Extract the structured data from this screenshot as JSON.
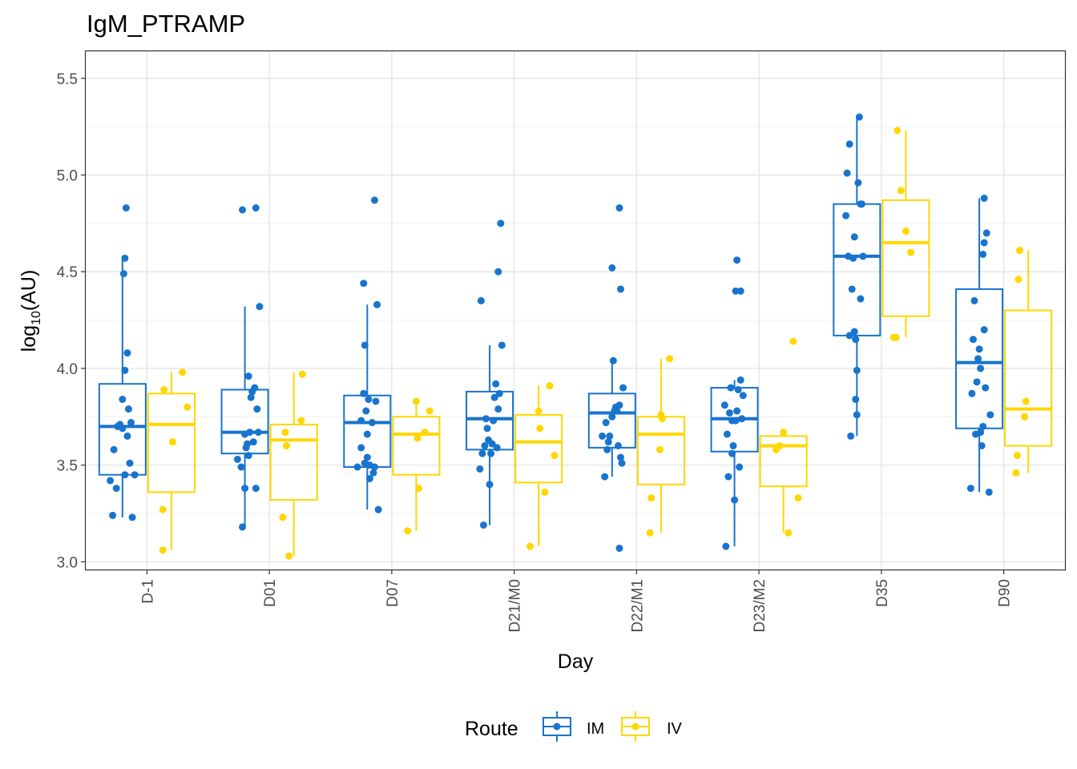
{
  "chart_data": {
    "type": "boxplot",
    "title": "IgM_PTRAMP",
    "xlabel": "Day",
    "ylabel": "log10(AU)",
    "ylabel_base": "log",
    "ylabel_sub": "10",
    "ylabel_rest": "(AU)",
    "ylim": [
      2.96,
      5.64
    ],
    "yticks": [
      "3.0",
      "3.5",
      "4.0",
      "4.5",
      "5.0",
      "5.5"
    ],
    "categories": [
      "D-1",
      "D01",
      "D07",
      "D21/M0",
      "D22/M1",
      "D23/M2",
      "D35",
      "D90"
    ],
    "grid": true,
    "legend": {
      "title": "Route",
      "position": "bottom"
    },
    "series": [
      {
        "name": "IM",
        "color": "#1874CD",
        "boxes": [
          {
            "q1": 3.45,
            "median": 3.7,
            "q3": 3.92,
            "whisker_low": 3.23,
            "whisker_high": 4.57
          },
          {
            "q1": 3.56,
            "median": 3.67,
            "q3": 3.89,
            "whisker_low": 3.18,
            "whisker_high": 4.32
          },
          {
            "q1": 3.49,
            "median": 3.72,
            "q3": 3.86,
            "whisker_low": 3.27,
            "whisker_high": 4.33
          },
          {
            "q1": 3.58,
            "median": 3.74,
            "q3": 3.88,
            "whisker_low": 3.19,
            "whisker_high": 4.12
          },
          {
            "q1": 3.59,
            "median": 3.77,
            "q3": 3.87,
            "whisker_low": 3.44,
            "whisker_high": 4.04
          },
          {
            "q1": 3.57,
            "median": 3.74,
            "q3": 3.9,
            "whisker_low": 3.08,
            "whisker_high": 3.94
          },
          {
            "q1": 4.17,
            "median": 4.58,
            "q3": 4.85,
            "whisker_low": 3.65,
            "whisker_high": 5.3
          },
          {
            "q1": 3.69,
            "median": 4.03,
            "q3": 4.41,
            "whisker_low": 3.36,
            "whisker_high": 4.88
          }
        ],
        "points": [
          [
            [
              -0.28,
              3.24
            ],
            [
              -0.3,
              3.42
            ],
            [
              -0.27,
              3.58
            ],
            [
              -0.25,
              3.38
            ],
            [
              -0.22,
              3.71
            ],
            [
              -0.2,
              3.84
            ],
            [
              -0.18,
              3.45
            ],
            [
              -0.16,
              3.65
            ],
            [
              -0.15,
              3.79
            ],
            [
              -0.13,
              3.72
            ],
            [
              -0.14,
              3.51
            ],
            [
              -0.12,
              3.23
            ],
            [
              -0.1,
              3.45
            ],
            [
              -0.18,
              3.99
            ],
            [
              -0.16,
              4.08
            ],
            [
              -0.19,
              4.49
            ],
            [
              -0.18,
              4.57
            ],
            [
              -0.17,
              4.83
            ],
            [
              -0.2,
              3.69
            ],
            [
              -0.24,
              3.7
            ]
          ],
          [
            [
              -0.26,
              3.53
            ],
            [
              -0.23,
              3.49
            ],
            [
              -0.22,
              3.18
            ],
            [
              -0.2,
              3.38
            ],
            [
              -0.18,
              3.61
            ],
            [
              -0.19,
              3.59
            ],
            [
              -0.17,
              3.96
            ],
            [
              -0.15,
              3.85
            ],
            [
              -0.14,
              3.88
            ],
            [
              -0.16,
              3.67
            ],
            [
              -0.12,
              3.9
            ],
            [
              -0.11,
              3.38
            ],
            [
              -0.1,
              3.79
            ],
            [
              -0.09,
              3.67
            ],
            [
              -0.08,
              4.32
            ],
            [
              -0.22,
              4.82
            ],
            [
              -0.11,
              4.83
            ],
            [
              -0.2,
              3.66
            ],
            [
              -0.13,
              3.62
            ],
            [
              -0.17,
              3.55
            ]
          ],
          [
            [
              -0.28,
              3.49
            ],
            [
              -0.25,
              3.59
            ],
            [
              -0.22,
              3.51
            ],
            [
              -0.23,
              3.87
            ],
            [
              -0.21,
              3.78
            ],
            [
              -0.19,
              3.84
            ],
            [
              -0.2,
              3.54
            ],
            [
              -0.18,
              3.43
            ],
            [
              -0.16,
              3.72
            ],
            [
              -0.15,
              3.46
            ],
            [
              -0.14,
              3.49
            ],
            [
              -0.13,
              3.83
            ],
            [
              -0.11,
              3.27
            ],
            [
              -0.12,
              4.33
            ],
            [
              -0.14,
              4.87
            ],
            [
              -0.23,
              4.44
            ],
            [
              -0.22,
              4.12
            ],
            [
              -0.18,
              3.5
            ],
            [
              -0.25,
              3.73
            ],
            [
              -0.2,
              3.66
            ]
          ],
          [
            [
              -0.28,
              3.48
            ],
            [
              -0.26,
              3.56
            ],
            [
              -0.25,
              3.19
            ],
            [
              -0.23,
              3.74
            ],
            [
              -0.22,
              3.69
            ],
            [
              -0.2,
              3.4
            ],
            [
              -0.19,
              3.56
            ],
            [
              -0.18,
              3.61
            ],
            [
              -0.16,
              3.85
            ],
            [
              -0.15,
              3.92
            ],
            [
              -0.14,
              3.59
            ],
            [
              -0.13,
              3.79
            ],
            [
              -0.12,
              3.87
            ],
            [
              -0.1,
              4.12
            ],
            [
              -0.13,
              4.5
            ],
            [
              -0.11,
              4.75
            ],
            [
              -0.27,
              4.35
            ],
            [
              -0.21,
              3.63
            ],
            [
              -0.17,
              3.73
            ],
            [
              -0.24,
              3.6
            ]
          ],
          [
            [
              -0.28,
              3.65
            ],
            [
              -0.26,
              3.44
            ],
            [
              -0.24,
              3.58
            ],
            [
              -0.22,
              3.65
            ],
            [
              -0.2,
              3.75
            ],
            [
              -0.19,
              4.04
            ],
            [
              -0.17,
              3.8
            ],
            [
              -0.16,
              3.78
            ],
            [
              -0.14,
              3.81
            ],
            [
              -0.13,
              3.54
            ],
            [
              -0.12,
              3.51
            ],
            [
              -0.11,
              3.9
            ],
            [
              -0.14,
              3.07
            ],
            [
              -0.2,
              4.52
            ],
            [
              -0.13,
              4.41
            ],
            [
              -0.14,
              4.83
            ],
            [
              -0.18,
              3.78
            ],
            [
              -0.23,
              3.62
            ],
            [
              -0.15,
              3.6
            ],
            [
              -0.25,
              3.72
            ]
          ],
          [
            [
              -0.28,
              3.81
            ],
            [
              -0.26,
              3.66
            ],
            [
              -0.25,
              3.44
            ],
            [
              -0.23,
              3.9
            ],
            [
              -0.22,
              3.56
            ],
            [
              -0.2,
              3.32
            ],
            [
              -0.19,
              3.73
            ],
            [
              -0.18,
              3.78
            ],
            [
              -0.17,
              3.89
            ],
            [
              -0.16,
              3.49
            ],
            [
              -0.15,
              3.94
            ],
            [
              -0.13,
              3.86
            ],
            [
              -0.27,
              3.08
            ],
            [
              -0.19,
              4.4
            ],
            [
              -0.15,
              4.4
            ],
            [
              -0.18,
              4.56
            ],
            [
              -0.24,
              3.77
            ],
            [
              -0.21,
              3.6
            ],
            [
              -0.14,
              3.74
            ],
            [
              -0.22,
              3.73
            ]
          ],
          [
            [
              -0.29,
              4.79
            ],
            [
              -0.27,
              4.58
            ],
            [
              -0.26,
              5.16
            ],
            [
              -0.28,
              5.01
            ],
            [
              -0.24,
              4.41
            ],
            [
              -0.22,
              4.19
            ],
            [
              -0.21,
              4.15
            ],
            [
              -0.2,
              3.99
            ],
            [
              -0.21,
              3.84
            ],
            [
              -0.2,
              3.76
            ],
            [
              -0.25,
              3.65
            ],
            [
              -0.19,
              4.96
            ],
            [
              -0.17,
              4.85
            ],
            [
              -0.17,
              4.36
            ],
            [
              -0.15,
              4.58
            ],
            [
              -0.18,
              5.3
            ],
            [
              -0.16,
              4.85
            ],
            [
              -0.23,
              4.57
            ],
            [
              -0.26,
              4.17
            ],
            [
              -0.22,
              4.68
            ]
          ],
          [
            [
              -0.27,
              3.38
            ],
            [
              -0.26,
              3.87
            ],
            [
              -0.25,
              4.15
            ],
            [
              -0.24,
              4.35
            ],
            [
              -0.23,
              3.66
            ],
            [
              -0.21,
              4.05
            ],
            [
              -0.2,
              4.1
            ],
            [
              -0.19,
              3.67
            ],
            [
              -0.18,
              3.6
            ],
            [
              -0.17,
              3.7
            ],
            [
              -0.16,
              4.2
            ],
            [
              -0.15,
              3.9
            ],
            [
              -0.17,
              4.59
            ],
            [
              -0.16,
              4.65
            ],
            [
              -0.14,
              4.7
            ],
            [
              -0.16,
              4.88
            ],
            [
              -0.12,
              3.36
            ],
            [
              -0.11,
              3.76
            ],
            [
              -0.19,
              4.0
            ],
            [
              -0.22,
              3.93
            ]
          ]
        ]
      },
      {
        "name": "IV",
        "color": "#FFD700",
        "boxes": [
          {
            "q1": 3.36,
            "median": 3.71,
            "q3": 3.87,
            "whisker_low": 3.06,
            "whisker_high": 3.98
          },
          {
            "q1": 3.32,
            "median": 3.63,
            "q3": 3.71,
            "whisker_low": 3.03,
            "whisker_high": 3.98
          },
          {
            "q1": 3.45,
            "median": 3.66,
            "q3": 3.75,
            "whisker_low": 3.16,
            "whisker_high": 3.83
          },
          {
            "q1": 3.41,
            "median": 3.62,
            "q3": 3.76,
            "whisker_low": 3.08,
            "whisker_high": 3.91
          },
          {
            "q1": 3.4,
            "median": 3.66,
            "q3": 3.75,
            "whisker_low": 3.15,
            "whisker_high": 4.05
          },
          {
            "q1": 3.39,
            "median": 3.6,
            "q3": 3.65,
            "whisker_low": 3.15,
            "whisker_high": 3.67
          },
          {
            "q1": 4.27,
            "median": 4.65,
            "q3": 4.87,
            "whisker_low": 4.16,
            "whisker_high": 5.23
          },
          {
            "q1": 3.6,
            "median": 3.79,
            "q3": 4.3,
            "whisker_low": 3.46,
            "whisker_high": 4.61
          }
        ],
        "points": [
          [
            [
              0.13,
              3.27
            ],
            [
              0.13,
              3.06
            ],
            [
              0.14,
              3.89
            ],
            [
              0.21,
              3.62
            ],
            [
              0.29,
              3.98
            ],
            [
              0.33,
              3.8
            ]
          ],
          [
            [
              0.11,
              3.23
            ],
            [
              0.13,
              3.67
            ],
            [
              0.14,
              3.6
            ],
            [
              0.16,
              3.03
            ],
            [
              0.27,
              3.97
            ],
            [
              0.26,
              3.73
            ]
          ],
          [
            [
              0.13,
              3.16
            ],
            [
              0.2,
              3.83
            ],
            [
              0.21,
              3.64
            ],
            [
              0.22,
              3.38
            ],
            [
              0.27,
              3.67
            ],
            [
              0.31,
              3.78
            ]
          ],
          [
            [
              0.13,
              3.08
            ],
            [
              0.2,
              3.78
            ],
            [
              0.21,
              3.69
            ],
            [
              0.25,
              3.36
            ],
            [
              0.29,
              3.91
            ],
            [
              0.33,
              3.55
            ]
          ],
          [
            [
              0.11,
              3.15
            ],
            [
              0.12,
              3.33
            ],
            [
              0.19,
              3.58
            ],
            [
              0.2,
              3.76
            ],
            [
              0.21,
              3.74
            ],
            [
              0.27,
              4.05
            ]
          ],
          [
            [
              0.14,
              3.58
            ],
            [
              0.17,
              3.6
            ],
            [
              0.2,
              3.67
            ],
            [
              0.24,
              3.15
            ],
            [
              0.28,
              4.14
            ],
            [
              0.32,
              3.33
            ]
          ],
          [
            [
              0.1,
              4.16
            ],
            [
              0.12,
              4.16
            ],
            [
              0.13,
              5.23
            ],
            [
              0.16,
              4.92
            ],
            [
              0.2,
              4.71
            ],
            [
              0.24,
              4.6
            ]
          ],
          [
            [
              0.1,
              3.46
            ],
            [
              0.11,
              3.55
            ],
            [
              0.12,
              4.46
            ],
            [
              0.13,
              4.61
            ],
            [
              0.17,
              3.75
            ],
            [
              0.18,
              3.83
            ]
          ]
        ]
      }
    ]
  }
}
